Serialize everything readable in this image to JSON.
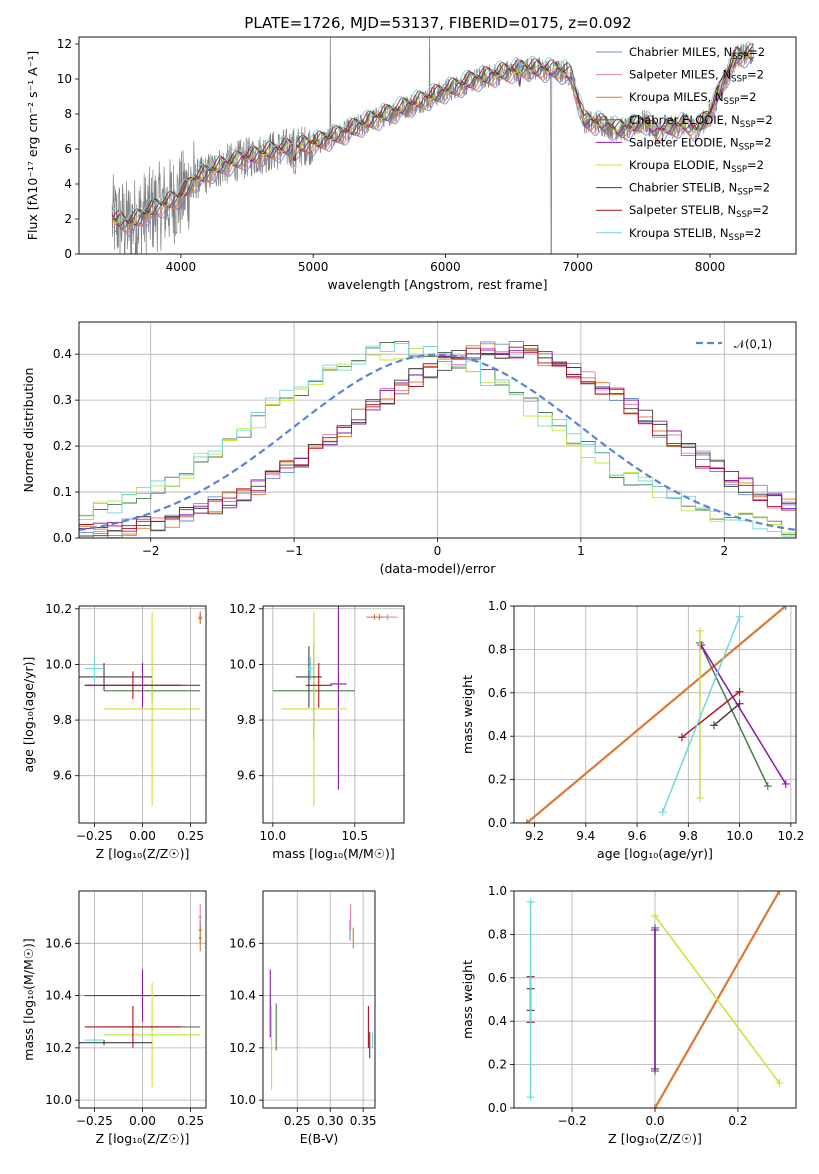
{
  "figure": {
    "title": "PLATE=1726, MJD=53137, FIBERID=0175, z=0.092"
  },
  "series": [
    {
      "key": "chab_miles",
      "color": "#6a8fd6"
    },
    {
      "key": "salp_miles",
      "color": "#e080b8"
    },
    {
      "key": "krou_miles",
      "color": "#e07a28"
    },
    {
      "key": "chab_elodie",
      "color": "#4a7a4a"
    },
    {
      "key": "salp_elodie",
      "color": "#8b1aa8"
    },
    {
      "key": "krou_elodie",
      "color": "#c8e23a"
    },
    {
      "key": "chab_stelib",
      "color": "#404040"
    },
    {
      "key": "salp_stelib",
      "color": "#b01020"
    },
    {
      "key": "krou_stelib",
      "color": "#70d8dc"
    }
  ],
  "chart_data": [
    {
      "id": "spectrum",
      "type": "line",
      "title": "PLATE=1726, MJD=53137, FIBERID=0175, z=0.092",
      "xlabel": "wavelength [Angstrom, rest frame]",
      "ylabel": "Flux [fλ10⁻¹⁷ erg cm⁻² s⁻¹ A⁻¹]",
      "xlim": [
        3230,
        8650
      ],
      "ylim": [
        0,
        12.4
      ],
      "xticks": [
        "4000",
        "5000",
        "6000",
        "7000",
        "8000"
      ],
      "yticks": [
        "0",
        "2",
        "4",
        "6",
        "8",
        "10",
        "12"
      ],
      "data_color": "#808080",
      "legend_position": "upper right",
      "legend": [
        {
          "name": "Chabrier MILES, N",
          "sub": "SSP",
          "tail": "=2"
        },
        {
          "name": "Salpeter MILES, N",
          "sub": "SSP",
          "tail": "=2"
        },
        {
          "name": "Kroupa MILES, N",
          "sub": "SSP",
          "tail": "=2"
        },
        {
          "name": "Chabrier ELODIE, N",
          "sub": "SSP",
          "tail": "=2"
        },
        {
          "name": "Salpeter ELODIE, N",
          "sub": "SSP",
          "tail": "=2"
        },
        {
          "name": "Kroupa ELODIE, N",
          "sub": "SSP",
          "tail": "=2"
        },
        {
          "name": "Chabrier STELIB, N",
          "sub": "SSP",
          "tail": "=2"
        },
        {
          "name": "Salpeter STELIB, N",
          "sub": "SSP",
          "tail": "=2"
        },
        {
          "name": "Kroupa STELIB, N",
          "sub": "SSP",
          "tail": "=2"
        }
      ],
      "continuum_nodes": {
        "x": [
          3480,
          3600,
          3700,
          3800,
          3900,
          4000,
          4100,
          4300,
          4500,
          4700,
          4860,
          5000,
          5200,
          5400,
          5600,
          5800,
          6000,
          6200,
          6400,
          6600,
          6800,
          6900,
          6950,
          7050,
          7200,
          7300,
          7400,
          7500,
          7600,
          7700,
          7800,
          7900,
          8000,
          8100,
          8200,
          8300
        ],
        "y": [
          2.0,
          1.7,
          2.1,
          2.6,
          2.9,
          3.3,
          4.2,
          5.0,
          5.5,
          5.9,
          6.1,
          6.3,
          6.8,
          7.5,
          8.1,
          8.7,
          9.3,
          9.9,
          10.3,
          10.6,
          10.5,
          10.4,
          10.2,
          7.6,
          7.4,
          7.1,
          7.2,
          7.6,
          7.0,
          7.2,
          7.4,
          7.1,
          8.0,
          9.8,
          11.3,
          11.4
        ]
      }
    },
    {
      "id": "residuals",
      "type": "line",
      "xlabel": "(data-model)/error",
      "ylabel": "Normed distribution",
      "xlim": [
        -2.5,
        2.5
      ],
      "ylim": [
        0,
        0.47
      ],
      "xticks": [
        "−2",
        "−1",
        "0",
        "1",
        "2"
      ],
      "yticks": [
        "0.0",
        "0.1",
        "0.2",
        "0.3",
        "0.4"
      ],
      "legend": "𝒩(0,1)",
      "normal_curve": {
        "mean": 0,
        "sigma": 1,
        "color": "#5b84d8"
      }
    },
    {
      "id": "age_vs_Z",
      "type": "scatter",
      "xlabel": "Z [log₁₀(Z/Z☉)]",
      "ylabel": "age  [log₁₀(age/yr)]",
      "xlim": [
        -0.33,
        0.33
      ],
      "ylim": [
        9.43,
        10.21
      ],
      "xticks": [
        "−0.25",
        "0.00",
        "0.25"
      ],
      "yticks": [
        "9.6",
        "9.8",
        "10.0",
        "10.2"
      ],
      "points": [
        {
          "s": 0,
          "x": 0.3,
          "y": 10.17,
          "xe": 0.01,
          "ye": 0.02
        },
        {
          "s": 1,
          "x": 0.3,
          "y": 10.17,
          "xe": 0.01,
          "ye": 0.02
        },
        {
          "s": 2,
          "x": 0.3,
          "y": 10.165,
          "xe": 0.01,
          "ye": 0.02
        },
        {
          "s": 3,
          "x": 0.05,
          "y": 9.905,
          "xe": 0.25,
          "ye": 0.04
        },
        {
          "s": 4,
          "x": 0.0,
          "y": 9.925,
          "xe": 0.3,
          "ye": 0.08
        },
        {
          "s": 5,
          "x": 0.05,
          "y": 9.84,
          "xe": 0.25,
          "ye": 0.35
        },
        {
          "s": 6,
          "x": -0.2,
          "y": 9.955,
          "xe": 0.25,
          "ye": 0.05
        },
        {
          "s": 7,
          "x": -0.05,
          "y": 9.925,
          "xe": 0.25,
          "ye": 0.05
        },
        {
          "s": 8,
          "x": -0.25,
          "y": 9.985,
          "xe": 0.05,
          "ye": 0.05
        }
      ]
    },
    {
      "id": "age_vs_mass",
      "type": "scatter",
      "xlabel": "mass [log₁₀(M/M☉)]",
      "ylabel": "",
      "xlim": [
        9.94,
        10.8
      ],
      "ylim": [
        9.43,
        10.21
      ],
      "xticks": [
        "10.0",
        "10.5"
      ],
      "yticks": [
        "9.6",
        "9.8",
        "10.0",
        "10.2"
      ],
      "points": [
        {
          "s": 0,
          "x": 10.65,
          "y": 10.17,
          "xe": 0.05,
          "ye": 0.01
        },
        {
          "s": 1,
          "x": 10.7,
          "y": 10.17,
          "xe": 0.06,
          "ye": 0.01
        },
        {
          "s": 2,
          "x": 10.62,
          "y": 10.17,
          "xe": 0.05,
          "ye": 0.01
        },
        {
          "s": 3,
          "x": 10.25,
          "y": 9.905,
          "xe": 0.25,
          "ye": 0.17
        },
        {
          "s": 4,
          "x": 10.4,
          "y": 9.93,
          "xe": 0.05,
          "ye": 0.38
        },
        {
          "s": 5,
          "x": 10.25,
          "y": 9.84,
          "xe": 0.2,
          "ye": 0.35
        },
        {
          "s": 6,
          "x": 10.22,
          "y": 9.955,
          "xe": 0.08,
          "ye": 0.11
        },
        {
          "s": 7,
          "x": 10.28,
          "y": 9.925,
          "xe": 0.08,
          "ye": 0.08
        },
        {
          "s": 8,
          "x": 10.23,
          "y": 9.985,
          "xe": 0.02,
          "ye": 0.04
        }
      ]
    },
    {
      "id": "weight_vs_age",
      "type": "line",
      "xlabel": "age  [log₁₀(age/yr)]",
      "ylabel": "mass weight",
      "xlim": [
        9.12,
        10.22
      ],
      "ylim": [
        0,
        1
      ],
      "xticks": [
        "9.2",
        "9.4",
        "9.6",
        "9.8",
        "10.0",
        "10.2"
      ],
      "yticks": [
        "0.0",
        "0.2",
        "0.4",
        "0.6",
        "0.8",
        "1.0"
      ],
      "segments": [
        {
          "s": 0,
          "x": [
            9.17,
            10.18
          ],
          "y": [
            0.0,
            1.0
          ]
        },
        {
          "s": 1,
          "x": [
            9.17,
            10.18
          ],
          "y": [
            0.0,
            1.0
          ]
        },
        {
          "s": 2,
          "x": [
            9.17,
            10.18
          ],
          "y": [
            0.0,
            1.0
          ]
        },
        {
          "s": 3,
          "x": [
            9.845,
            10.11
          ],
          "y": [
            0.83,
            0.17
          ]
        },
        {
          "s": 4,
          "x": [
            9.85,
            10.18
          ],
          "y": [
            0.82,
            0.18
          ]
        },
        {
          "s": 5,
          "x": [
            9.845,
            9.845
          ],
          "y": [
            0.885,
            0.115
          ]
        },
        {
          "s": 6,
          "x": [
            10.0,
            9.9
          ],
          "y": [
            0.55,
            0.45
          ]
        },
        {
          "s": 7,
          "x": [
            10.0,
            9.775
          ],
          "y": [
            0.605,
            0.395
          ]
        },
        {
          "s": 8,
          "x": [
            10.0,
            9.7
          ],
          "y": [
            0.95,
            0.05
          ]
        }
      ]
    },
    {
      "id": "mass_vs_Z",
      "type": "scatter",
      "xlabel": "Z [log₁₀(Z/Z☉)]",
      "ylabel": "mass [log₁₀(M/M☉)]",
      "xlim": [
        -0.33,
        0.33
      ],
      "ylim": [
        9.97,
        10.8
      ],
      "xticks": [
        "−0.25",
        "0.00",
        "0.25"
      ],
      "yticks": [
        "10.0",
        "10.2",
        "10.4",
        "10.6"
      ],
      "points": [
        {
          "s": 0,
          "x": 0.3,
          "y": 10.65,
          "xe": 0.01,
          "ye": 0.05
        },
        {
          "s": 1,
          "x": 0.3,
          "y": 10.7,
          "xe": 0.01,
          "ye": 0.05
        },
        {
          "s": 2,
          "x": 0.3,
          "y": 10.62,
          "xe": 0.01,
          "ye": 0.05
        },
        {
          "s": 3,
          "x": 0.05,
          "y": 10.28,
          "xe": 0.25,
          "ye": 0.01
        },
        {
          "s": 4,
          "x": 0.0,
          "y": 10.4,
          "xe": 0.3,
          "ye": 0.1
        },
        {
          "s": 5,
          "x": 0.05,
          "y": 10.25,
          "xe": 0.25,
          "ye": 0.2
        },
        {
          "s": 6,
          "x": -0.2,
          "y": 10.22,
          "xe": 0.25,
          "ye": 0.01
        },
        {
          "s": 7,
          "x": -0.05,
          "y": 10.28,
          "xe": 0.25,
          "ye": 0.08
        },
        {
          "s": 8,
          "x": -0.25,
          "y": 10.23,
          "xe": 0.05,
          "ye": 0.01
        }
      ]
    },
    {
      "id": "mass_vs_ebv",
      "type": "scatter",
      "xlabel": "E(B-V)",
      "ylabel": "",
      "xlim": [
        0.198,
        0.368
      ],
      "ylim": [
        9.97,
        10.8
      ],
      "xticks": [
        "0.25",
        "0.30",
        "0.35"
      ],
      "yticks": [
        "10.0",
        "10.2",
        "10.4",
        "10.6"
      ],
      "points": [
        {
          "s": 0,
          "x": 0.33,
          "y": 10.65,
          "xe": 0,
          "ye": 0.04
        },
        {
          "s": 1,
          "x": 0.331,
          "y": 10.7,
          "xe": 0,
          "ye": 0.05
        },
        {
          "s": 2,
          "x": 0.335,
          "y": 10.62,
          "xe": 0,
          "ye": 0.04
        },
        {
          "s": 3,
          "x": 0.218,
          "y": 10.28,
          "xe": 0,
          "ye": 0.09
        },
        {
          "s": 4,
          "x": 0.209,
          "y": 10.37,
          "xe": 0,
          "ye": 0.13
        },
        {
          "s": 5,
          "x": 0.211,
          "y": 10.2,
          "xe": 0,
          "ye": 0.16
        },
        {
          "s": 6,
          "x": 0.36,
          "y": 10.21,
          "xe": 0,
          "ye": 0.05
        },
        {
          "s": 7,
          "x": 0.358,
          "y": 10.28,
          "xe": 0,
          "ye": 0.08
        },
        {
          "s": 8,
          "x": 0.364,
          "y": 10.23,
          "xe": 0,
          "ye": 0.03
        }
      ]
    },
    {
      "id": "weight_vs_Z",
      "type": "line",
      "xlabel": "Z [log₁₀(Z/Z☉)]",
      "ylabel": "mass weight",
      "xlim": [
        -0.34,
        0.34
      ],
      "ylim": [
        0,
        1
      ],
      "xticks": [
        "−0.2",
        "0.0",
        "0.2"
      ],
      "yticks": [
        "0.0",
        "0.2",
        "0.4",
        "0.6",
        "0.8",
        "1.0"
      ],
      "segments": [
        {
          "s": 0,
          "x": [
            0.0,
            0.3
          ],
          "y": [
            0.0,
            1.0
          ]
        },
        {
          "s": 1,
          "x": [
            0.0,
            0.3
          ],
          "y": [
            0.0,
            1.0
          ]
        },
        {
          "s": 2,
          "x": [
            0.0,
            0.3
          ],
          "y": [
            0.0,
            1.0
          ]
        },
        {
          "s": 3,
          "x": [
            0.0,
            0.0
          ],
          "y": [
            0.83,
            0.17
          ]
        },
        {
          "s": 4,
          "x": [
            0.0,
            0.0
          ],
          "y": [
            0.82,
            0.18
          ]
        },
        {
          "s": 5,
          "x": [
            0.0,
            0.3
          ],
          "y": [
            0.885,
            0.115
          ]
        },
        {
          "s": 6,
          "x": [
            -0.3,
            -0.3
          ],
          "y": [
            0.55,
            0.45
          ]
        },
        {
          "s": 7,
          "x": [
            -0.3,
            -0.3
          ],
          "y": [
            0.605,
            0.395
          ]
        },
        {
          "s": 8,
          "x": [
            -0.3,
            -0.3
          ],
          "y": [
            0.95,
            0.05
          ]
        }
      ]
    }
  ]
}
